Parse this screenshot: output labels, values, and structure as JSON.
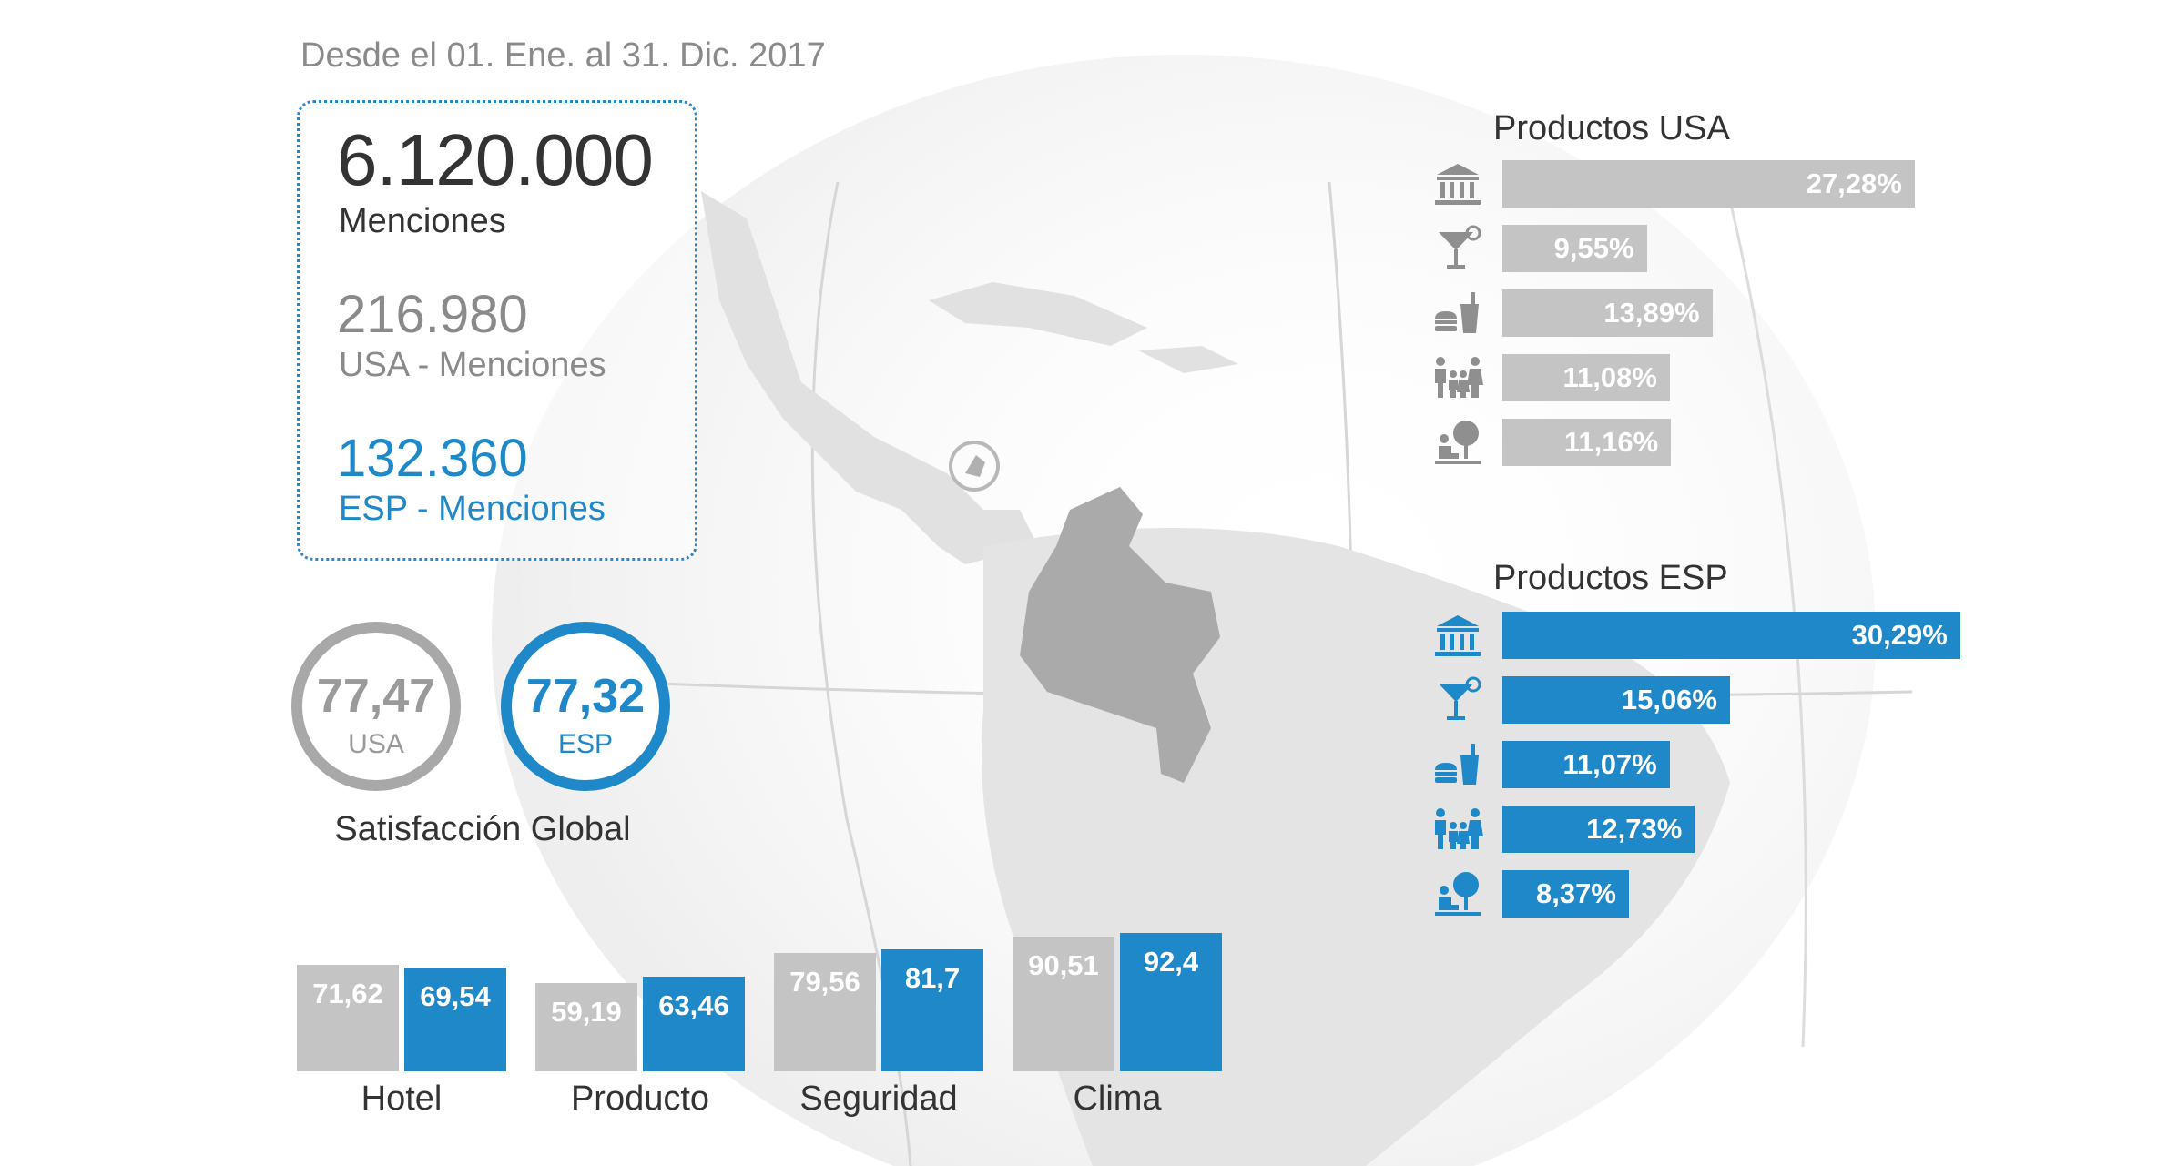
{
  "period": "Desde el 01. Ene. al 31. Dic. 2017",
  "mentions": {
    "total_value": "6.120.000",
    "total_label": "Menciones",
    "usa_value": "216.980",
    "usa_label": "USA - Menciones",
    "esp_value": "132.360",
    "esp_label": "ESP - Menciones"
  },
  "satisfaction": {
    "usa_value": "77,47",
    "usa_label": "USA",
    "esp_value": "77,32",
    "esp_label": "ESP",
    "title": "Satisfacción Global"
  },
  "colors": {
    "usa": "#c4c4c4",
    "esp": "#1e88c8"
  },
  "product_icons": [
    "museum-icon",
    "cocktail-icon",
    "food-drink-icon",
    "family-icon",
    "kids-play-icon"
  ],
  "chart_data": [
    {
      "type": "bar",
      "categories": [
        "Hotel",
        "Producto",
        "Seguridad",
        "Clima"
      ],
      "series": [
        {
          "name": "USA",
          "values": [
            71.62,
            59.19,
            79.56,
            90.51
          ],
          "labels": [
            "71,62",
            "59,19",
            "79,56",
            "90,51"
          ]
        },
        {
          "name": "ESP",
          "values": [
            69.54,
            63.46,
            81.7,
            92.4
          ],
          "labels": [
            "69,54",
            "63,46",
            "81,7",
            "92,4"
          ]
        }
      ]
    },
    {
      "type": "bar",
      "orientation": "horizontal",
      "title": "Productos USA",
      "values": [
        27.28,
        9.55,
        13.89,
        11.08,
        11.16
      ],
      "labels": [
        "27,28%",
        "9,55%",
        "13,89%",
        "11,08%",
        "11,16%"
      ]
    },
    {
      "type": "bar",
      "orientation": "horizontal",
      "title": "Productos ESP",
      "values": [
        30.29,
        15.06,
        11.07,
        12.73,
        8.37
      ],
      "labels": [
        "30,29%",
        "15,06%",
        "11,07%",
        "12,73%",
        "8,37%"
      ]
    }
  ]
}
